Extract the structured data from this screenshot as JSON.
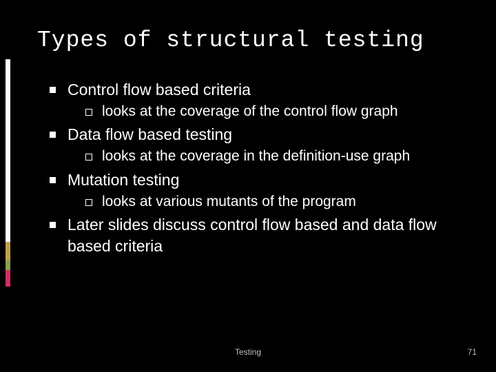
{
  "title": "Types of structural testing",
  "bullets": [
    {
      "text": "Control flow based criteria",
      "children": [
        {
          "text": "looks at the coverage of the control flow graph"
        }
      ]
    },
    {
      "text": "Data flow based testing",
      "children": [
        {
          "text": "looks at the  coverage in the definition-use graph"
        }
      ]
    },
    {
      "text": "Mutation testing",
      "children": [
        {
          "text": "looks at various mutants of the program"
        }
      ]
    },
    {
      "text": "Later slides discuss control flow based and data flow based criteria",
      "children": []
    }
  ],
  "footer": {
    "label": "Testing",
    "page": "71"
  },
  "accent_colors": {
    "white": "#ffffff",
    "gold": "#c0a050",
    "green": "#8aa050",
    "red": "#d03060"
  },
  "style": {
    "background": "#000000",
    "title_font": "Courier New",
    "title_fontsize": 33,
    "body_font": "Segoe UI",
    "level1_fontsize": 23,
    "level2_fontsize": 21,
    "text_color": "#ffffff",
    "footer_color": "#bfbfbf",
    "footer_fontsize": 12
  }
}
